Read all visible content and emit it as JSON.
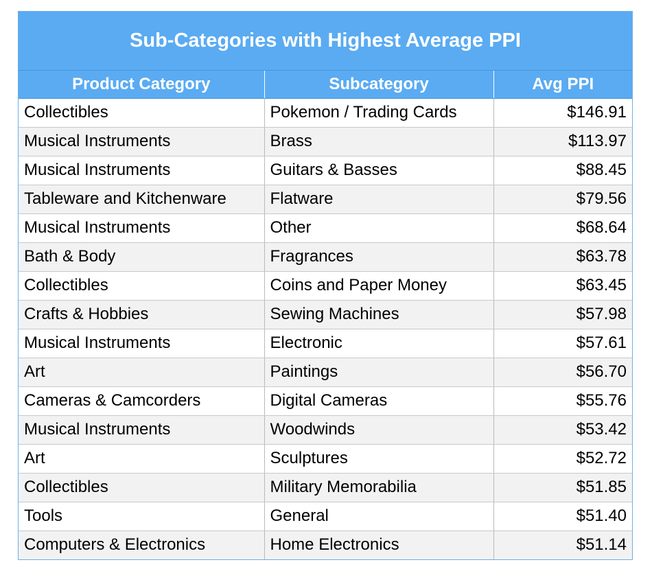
{
  "title": "Sub-Categories with Highest Average PPI",
  "columns": [
    "Product Category",
    "Subcategory",
    "Avg PPI"
  ],
  "rows": [
    [
      "Collectibles",
      "Pokemon / Trading Cards",
      "$146.91"
    ],
    [
      "Musical Instruments",
      "Brass",
      "$113.97"
    ],
    [
      "Musical Instruments",
      "Guitars & Basses",
      "$88.45"
    ],
    [
      "Tableware and Kitchenware",
      "Flatware",
      "$79.56"
    ],
    [
      "Musical Instruments",
      "Other",
      "$68.64"
    ],
    [
      "Bath & Body",
      "Fragrances",
      "$63.78"
    ],
    [
      "Collectibles",
      "Coins and Paper Money",
      "$63.45"
    ],
    [
      "Crafts & Hobbies",
      "Sewing Machines",
      "$57.98"
    ],
    [
      "Musical Instruments",
      "Electronic",
      "$57.61"
    ],
    [
      "Art",
      "Paintings",
      "$56.70"
    ],
    [
      "Cameras & Camcorders",
      "Digital Cameras",
      "$55.76"
    ],
    [
      "Musical Instruments",
      "Woodwinds",
      "$53.42"
    ],
    [
      "Art",
      "Sculptures",
      "$52.72"
    ],
    [
      "Collectibles",
      "Military Memorabilia",
      "$51.85"
    ],
    [
      "Tools",
      "General",
      "$51.40"
    ],
    [
      "Computers & Electronics",
      "Home Electronics",
      "$51.14"
    ]
  ],
  "colors": {
    "header_bg": "#5aabf2",
    "header_text": "#ffffff",
    "stripe": "#f2f2f2"
  }
}
